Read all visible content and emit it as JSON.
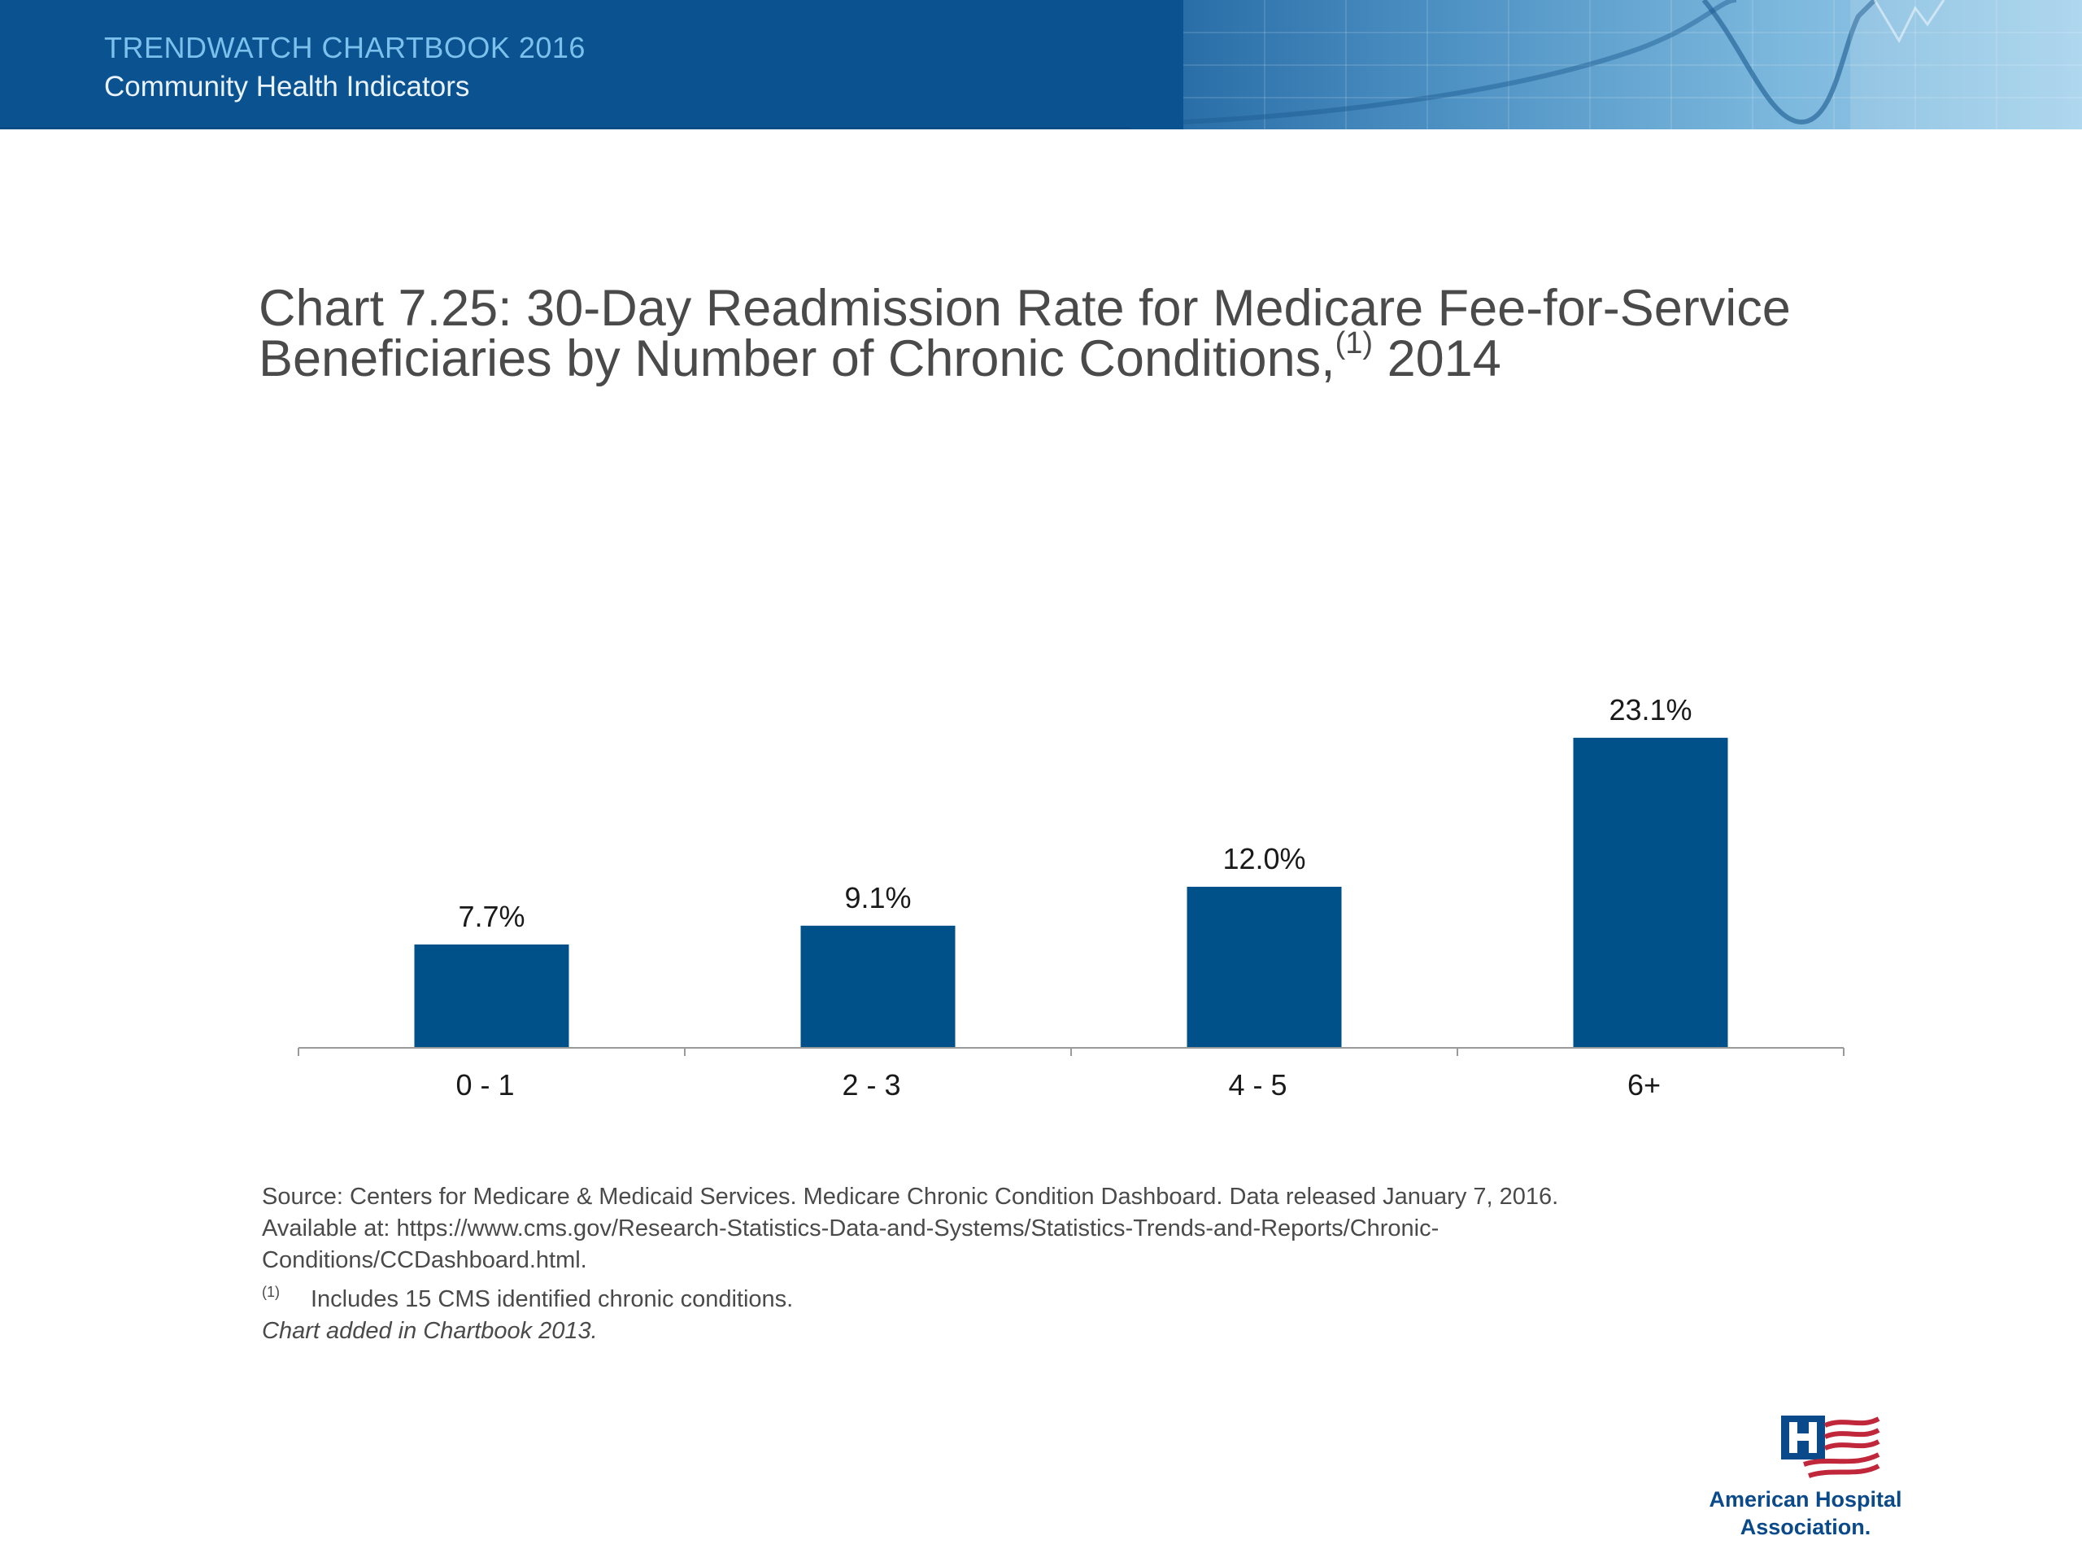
{
  "header": {
    "series_title": "TRENDWATCH CHARTBOOK 2016",
    "series_subtitle": "Community Health Indicators"
  },
  "title": {
    "line1": "Chart 7.25: 30-Day Readmission Rate for Medicare Fee-for-Service",
    "line2": "Beneficiaries by Number of Chronic Conditions,",
    "superscript": "(1)",
    "year": " 2014"
  },
  "chart_data": {
    "type": "bar",
    "title": "30-Day Readmission Rate for Medicare Fee-for-Service Beneficiaries by Number of Chronic Conditions, 2014",
    "xlabel": "",
    "ylabel": "",
    "categories": [
      "0 - 1",
      "2 - 3",
      "4 - 5",
      "6+"
    ],
    "values": [
      7.7,
      9.1,
      12.0,
      23.1
    ],
    "value_labels": [
      "7.7%",
      "9.1%",
      "12.0%",
      "23.1%"
    ],
    "ylim": [
      0,
      25
    ],
    "grid": false,
    "legend": "none",
    "bar_color": "#00518a"
  },
  "footnotes": {
    "source_line1": "Source: Centers for Medicare & Medicaid Services. Medicare Chronic Condition Dashboard. Data released January 7, 2016.",
    "source_line2": "Available at: https://www.cms.gov/Research-Statistics-Data-and-Systems/Statistics-Trends-and-Reports/Chronic-",
    "source_line3": "Conditions/CCDashboard.html.",
    "note_marker": "(1)",
    "note_text": "Includes 15 CMS identified chronic conditions.",
    "added": "Chart added in Chartbook 2013."
  },
  "logo": {
    "name_line1": "American Hospital",
    "name_line2": "Association."
  },
  "colors": {
    "header_bg": "#0a5290",
    "bar": "#00518a",
    "logo_blue": "#0a4a8a",
    "logo_red": "#c0273a"
  }
}
